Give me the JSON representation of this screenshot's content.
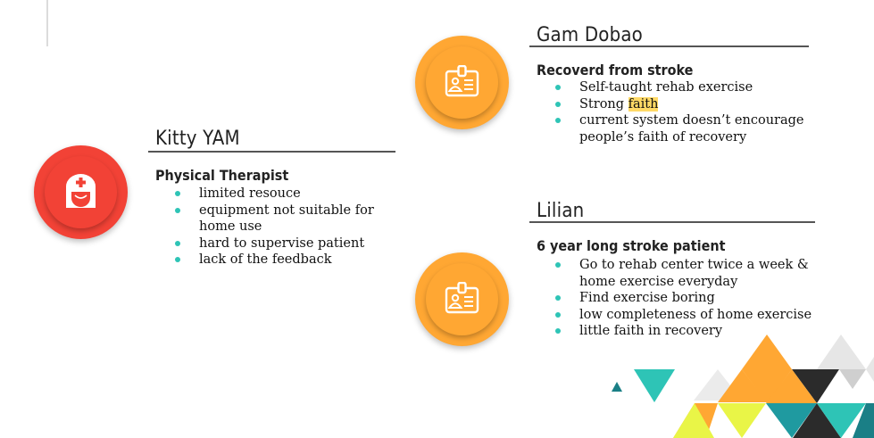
{
  "kitty": {
    "name": "Kitty YAM",
    "role": "Physical Therapist",
    "points": [
      "limited resouce",
      "equipment not suitable for home use",
      "hard to supervise patient",
      "lack of the feedback"
    ],
    "icon": "nurse-icon"
  },
  "gam": {
    "name": "Gam Dobao",
    "role": "Recoverd from stroke",
    "points": [
      "Self-taught rehab exercise",
      "Strong ",
      "faith",
      "current system doesn’t encourage people’s faith of recovery"
    ],
    "icon": "id-badge-icon"
  },
  "lilian": {
    "name": "Lilian",
    "role": "6 year long stroke patient",
    "points": [
      "Go to rehab center twice a week & home exercise everyday",
      "Find exercise boring",
      " low completeness of home exercise",
      "little faith in recovery"
    ],
    "icon": "id-badge-icon"
  },
  "colors": {
    "red": "#f24236",
    "orange": "#ffa733",
    "teal": "#2ec4b6",
    "highlight": "#ffd966"
  }
}
